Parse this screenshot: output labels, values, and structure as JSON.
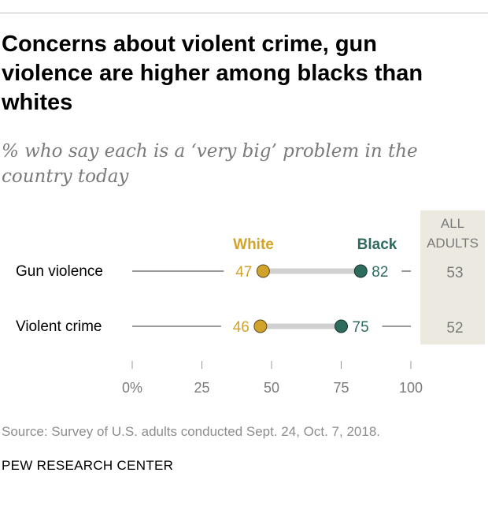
{
  "title": "Concerns about violent crime, gun violence are higher among blacks than whites",
  "subtitle": "% who say each is a ‘very big’ problem in the country today",
  "source": "Source: Survey of U.S. adults conducted Sept. 24, Oct. 7, 2018.",
  "organization": "PEW RESEARCH CENTER",
  "colors": {
    "white": "#d2a32b",
    "black": "#2e6b5c",
    "all_adults_bg": "#eceae0",
    "text_gray": "#7a7a7a"
  },
  "chart_data": {
    "type": "dot",
    "xlim": [
      0,
      100
    ],
    "ticks": [
      0,
      25,
      50,
      75,
      100
    ],
    "tick_labels": [
      "0%",
      "25",
      "50",
      "75",
      "100"
    ],
    "categories": [
      "Gun violence",
      "Violent crime"
    ],
    "series": [
      {
        "name": "White",
        "values": [
          47,
          46
        ]
      },
      {
        "name": "Black",
        "values": [
          82,
          75
        ]
      }
    ],
    "all_adults": {
      "header": [
        "ALL",
        "ADULTS"
      ],
      "values": [
        53,
        52
      ]
    }
  }
}
